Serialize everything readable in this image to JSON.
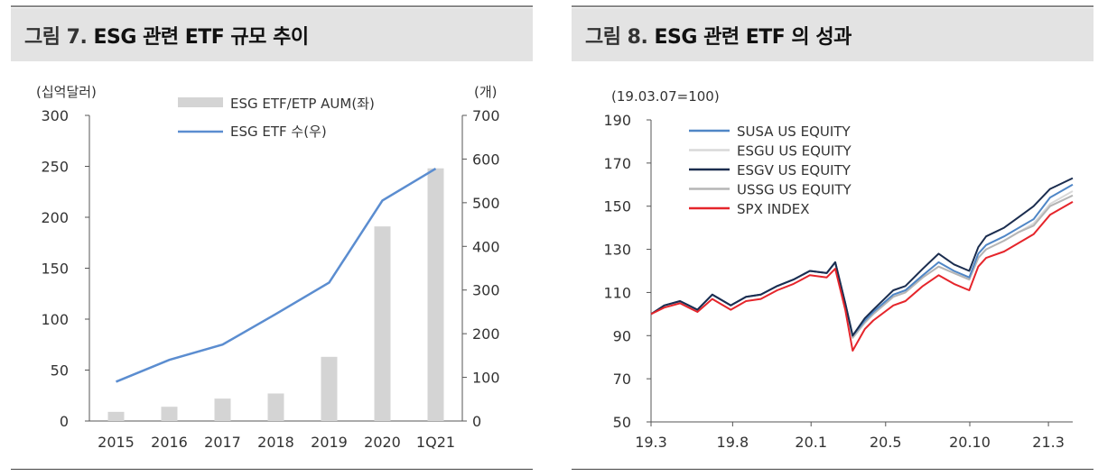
{
  "figure7": {
    "title_prefix": "그림 7.",
    "title_text": "ESG 관련 ETF 규모 추이",
    "chart_data": {
      "type": "bar",
      "categories": [
        "2015",
        "2016",
        "2017",
        "2018",
        "2019",
        "2020",
        "1Q21"
      ],
      "left_unit": "(십억달러)",
      "right_unit": "(개)",
      "ylim_left": [
        0,
        300
      ],
      "yticks_left": [
        0,
        50,
        100,
        150,
        200,
        250,
        300
      ],
      "ylim_right": [
        0,
        700
      ],
      "yticks_right": [
        0,
        100,
        200,
        300,
        400,
        500,
        600,
        700
      ],
      "series": [
        {
          "name": "ESG ETF/ETP AUM(좌)",
          "kind": "bar",
          "axis": "left",
          "color": "#d4d4d4",
          "values": [
            9,
            14,
            22,
            27,
            63,
            191,
            248
          ]
        },
        {
          "name": "ESG ETF 수(우)",
          "kind": "line",
          "axis": "right",
          "color": "#5b8dd0",
          "values": [
            90,
            140,
            175,
            245,
            317,
            505,
            578
          ]
        }
      ]
    }
  },
  "figure8": {
    "title_prefix": "그림 8.",
    "title_text": "ESG 관련 ETF 의 성과",
    "chart_data": {
      "type": "line",
      "unit_label": "(19.03.07=100)",
      "ylim": [
        50,
        190
      ],
      "yticks": [
        50,
        70,
        90,
        110,
        130,
        150,
        170,
        190
      ],
      "xlim": [
        "2019-03-07",
        "2021-05-14"
      ],
      "x_tick_labels": [
        "19.3",
        "19.8",
        "20.1",
        "20.5",
        "20.10",
        "21.3"
      ],
      "x": [
        "2019-03-07",
        "2019-04-01",
        "2019-05-01",
        "2019-06-03",
        "2019-07-01",
        "2019-08-05",
        "2019-09-03",
        "2019-10-01",
        "2019-11-01",
        "2019-12-02",
        "2020-01-02",
        "2020-02-03",
        "2020-02-19",
        "2020-03-09",
        "2020-03-23",
        "2020-04-15",
        "2020-05-01",
        "2020-06-08",
        "2020-07-01",
        "2020-08-03",
        "2020-09-02",
        "2020-10-01",
        "2020-10-30",
        "2020-11-16",
        "2020-12-01",
        "2021-01-04",
        "2021-02-01",
        "2021-03-01",
        "2021-04-01",
        "2021-05-14"
      ],
      "series": [
        {
          "name": "SUSA US EQUITY",
          "color": "#4f86c6",
          "values": [
            100,
            104,
            106,
            102,
            109,
            104,
            108,
            109,
            113,
            116,
            120,
            119,
            124,
            105,
            90,
            97,
            101,
            109,
            111,
            118,
            124,
            120,
            117,
            128,
            132,
            136,
            140,
            144,
            154,
            160
          ]
        },
        {
          "name": "ESGU US EQUITY",
          "color": "#d9d9d9",
          "values": [
            100,
            104,
            106,
            102,
            109,
            104,
            108,
            109,
            113,
            116,
            120,
            119,
            124,
            105,
            89,
            96,
            100,
            108,
            110,
            117,
            122,
            119,
            116,
            126,
            130,
            134,
            138,
            142,
            151,
            157
          ]
        },
        {
          "name": "ESGV US EQUITY",
          "color": "#1b2d4f",
          "values": [
            100,
            104,
            106,
            102,
            109,
            104,
            108,
            109,
            113,
            116,
            120,
            119,
            124,
            105,
            90,
            98,
            102,
            111,
            113,
            121,
            128,
            123,
            120,
            131,
            136,
            140,
            145,
            150,
            158,
            163
          ]
        },
        {
          "name": "USSG US EQUITY",
          "color": "#b5b5b5",
          "values": [
            100,
            104,
            106,
            102,
            109,
            104,
            108,
            109,
            113,
            116,
            120,
            119,
            124,
            105,
            89,
            96,
            100,
            108,
            110,
            117,
            122,
            119,
            116,
            126,
            130,
            134,
            138,
            141,
            150,
            155
          ]
        },
        {
          "name": "SPX INDEX",
          "color": "#e5252b",
          "values": [
            100,
            103,
            105,
            101,
            107,
            102,
            106,
            107,
            111,
            114,
            118,
            117,
            121,
            102,
            83,
            93,
            97,
            104,
            106,
            113,
            118,
            114,
            111,
            122,
            126,
            129,
            133,
            137,
            146,
            152
          ]
        }
      ]
    }
  }
}
